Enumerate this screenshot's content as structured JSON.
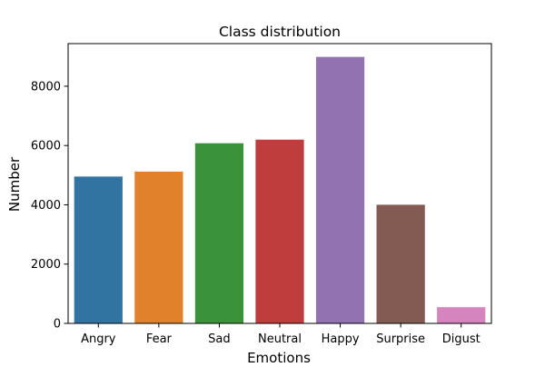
{
  "chart_data": {
    "type": "bar",
    "title": "Class distribution",
    "xlabel": "Emotions",
    "ylabel": "Number",
    "categories": [
      "Angry",
      "Fear",
      "Sad",
      "Neutral",
      "Happy",
      "Surprise",
      "Digust"
    ],
    "values": [
      4953,
      5121,
      6077,
      6198,
      8989,
      4002,
      547
    ],
    "colors": [
      "#3274a1",
      "#e1812c",
      "#3a923a",
      "#c03d3e",
      "#9372b2",
      "#845b53",
      "#d684bd"
    ],
    "ylim": [
      0,
      9438
    ],
    "yticks": [
      0,
      2000,
      4000,
      6000,
      8000
    ],
    "ytick_labels": [
      "0",
      "2000",
      "4000",
      "6000",
      "8000"
    ],
    "grid": false
  }
}
